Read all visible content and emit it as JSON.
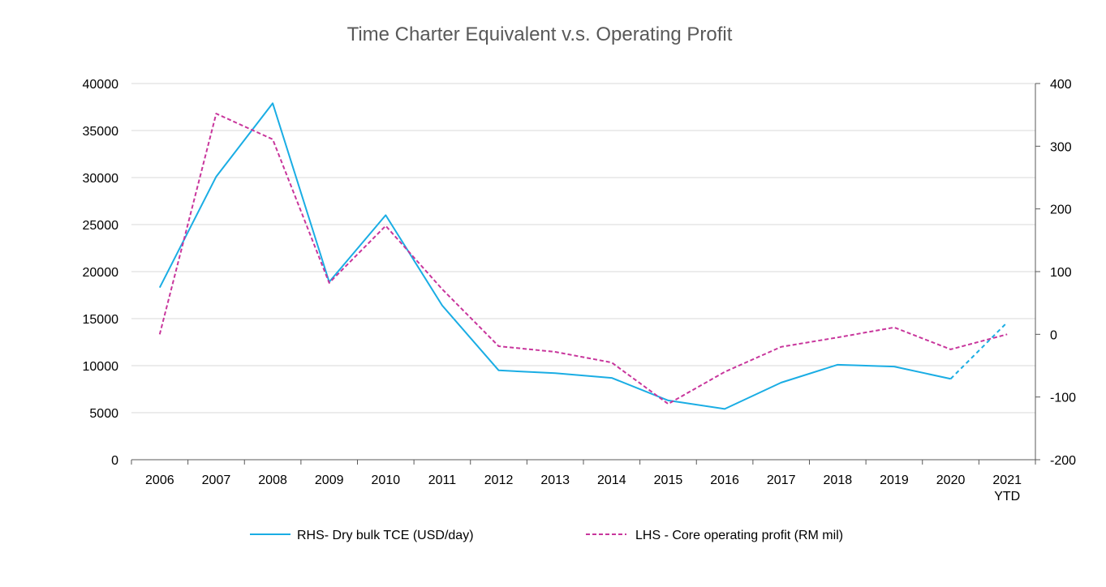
{
  "chart_data": {
    "type": "line",
    "title": "Time Charter Equivalent v.s. Operating Profit",
    "categories": [
      "2006",
      "2007",
      "2008",
      "2009",
      "2010",
      "2011",
      "2012",
      "2013",
      "2014",
      "2015",
      "2016",
      "2017",
      "2018",
      "2019",
      "2020",
      "2021 YTD"
    ],
    "category_lines": [
      [
        "2006"
      ],
      [
        "2007"
      ],
      [
        "2008"
      ],
      [
        "2009"
      ],
      [
        "2010"
      ],
      [
        "2011"
      ],
      [
        "2012"
      ],
      [
        "2013"
      ],
      [
        "2014"
      ],
      [
        "2015"
      ],
      [
        "2016"
      ],
      [
        "2017"
      ],
      [
        "2018"
      ],
      [
        "2019"
      ],
      [
        "2020"
      ],
      [
        "2021",
        "YTD"
      ]
    ],
    "left_axis": {
      "ylim": [
        0,
        40000
      ],
      "ticks": [
        0,
        5000,
        10000,
        15000,
        20000,
        25000,
        30000,
        35000,
        40000
      ]
    },
    "right_axis": {
      "ylim": [
        -200,
        400
      ],
      "ticks": [
        -200,
        -100,
        0,
        100,
        200,
        300,
        400
      ]
    },
    "grid": true,
    "legend_position": "bottom",
    "series": [
      {
        "name": "RHS- Dry bulk TCE (USD/day)",
        "axis": "left",
        "color": "#1AADE4",
        "style": "solid",
        "dashed_last_segment": true,
        "values": [
          18300,
          30100,
          37900,
          18900,
          26000,
          16400,
          9500,
          9200,
          8700,
          6300,
          5400,
          8200,
          10100,
          9900,
          8600,
          14600
        ]
      },
      {
        "name": "LHS - Core operating profit (RM mil)",
        "axis": "right",
        "color": "#C8369C",
        "style": "dashed",
        "values": [
          0,
          352,
          311,
          82,
          173,
          72,
          -19,
          -28,
          -45,
          -111,
          -60,
          -20,
          -5,
          11,
          -24,
          0
        ]
      }
    ]
  }
}
